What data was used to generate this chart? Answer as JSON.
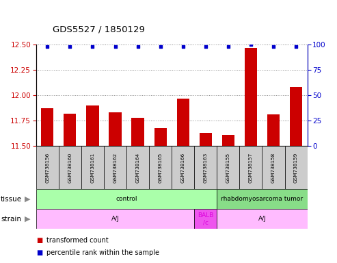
{
  "title": "GDS5527 / 1850129",
  "samples": [
    "GSM738156",
    "GSM738160",
    "GSM738161",
    "GSM738162",
    "GSM738164",
    "GSM738165",
    "GSM738166",
    "GSM738163",
    "GSM738155",
    "GSM738157",
    "GSM738158",
    "GSM738159"
  ],
  "transformed_counts": [
    11.87,
    11.82,
    11.9,
    11.83,
    11.78,
    11.68,
    11.97,
    11.63,
    11.61,
    12.47,
    11.81,
    12.08
  ],
  "percentile_ranks": [
    98,
    98,
    98,
    98,
    98,
    98,
    98,
    98,
    98,
    100,
    98,
    98
  ],
  "ylim_left": [
    11.5,
    12.5
  ],
  "ylim_right": [
    0,
    100
  ],
  "yticks_left": [
    11.5,
    11.75,
    12.0,
    12.25,
    12.5
  ],
  "yticks_right": [
    0,
    25,
    50,
    75,
    100
  ],
  "bar_color": "#cc0000",
  "dot_color": "#0000cc",
  "bar_bottom": 11.5,
  "tissue_labels": [
    {
      "label": "control",
      "start": 0,
      "end": 8,
      "color": "#aaffaa"
    },
    {
      "label": "rhabdomyosarcoma tumor",
      "start": 8,
      "end": 12,
      "color": "#88dd88"
    }
  ],
  "strain_labels": [
    {
      "label": "A/J",
      "start": 0,
      "end": 7,
      "color": "#ffbbff"
    },
    {
      "label": "BALB\n/c",
      "start": 7,
      "end": 8,
      "color": "#ee55ee"
    },
    {
      "label": "A/J",
      "start": 8,
      "end": 12,
      "color": "#ffbbff"
    }
  ],
  "strain_balb_color": "#dd00dd",
  "grid_color": "#888888",
  "left_axis_color": "#cc0000",
  "right_axis_color": "#0000cc",
  "sample_box_color": "#cccccc",
  "arrow_color": "#888888"
}
